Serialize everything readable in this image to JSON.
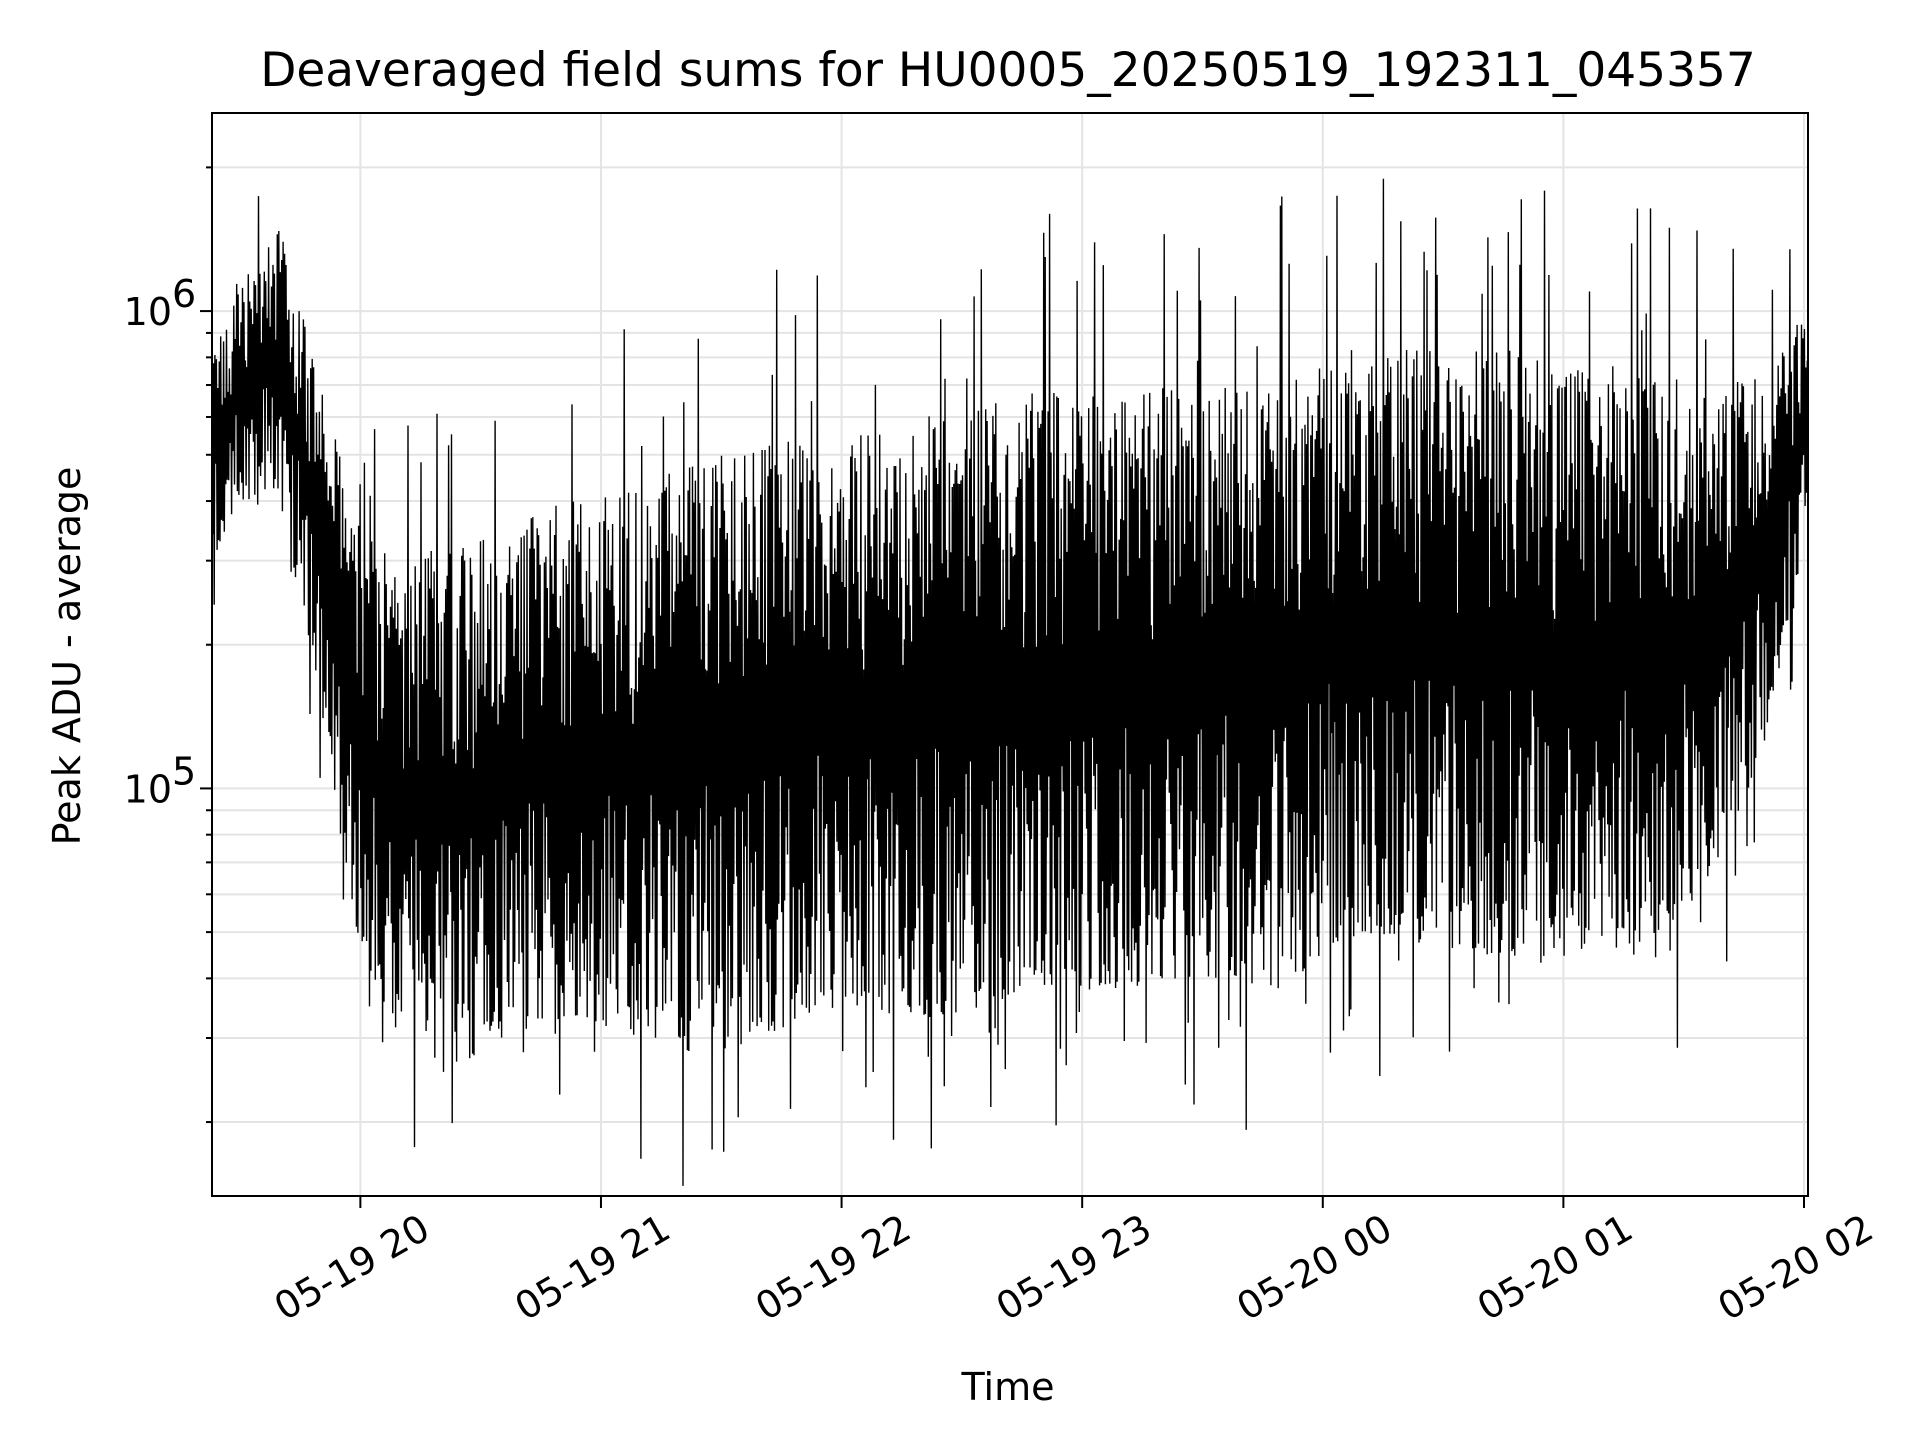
{
  "chart_data": {
    "type": "line",
    "title": "Deaveraged field sums for HU0005_20250519_192311_045357",
    "xlabel": "Time",
    "ylabel": "Peak ADU - average",
    "yscale": "log",
    "ylim": [
      14000,
      2600000
    ],
    "xlim": [
      "2025-05-19 19:23",
      "2025-05-20 02:01"
    ],
    "xticks": [
      {
        "value": "2025-05-19 20:00",
        "label": "05-19 20"
      },
      {
        "value": "2025-05-19 21:00",
        "label": "05-19 21"
      },
      {
        "value": "2025-05-19 22:00",
        "label": "05-19 22"
      },
      {
        "value": "2025-05-19 23:00",
        "label": "05-19 23"
      },
      {
        "value": "2025-05-20 00:00",
        "label": "05-20 00"
      },
      {
        "value": "2025-05-20 01:00",
        "label": "05-20 01"
      },
      {
        "value": "2025-05-20 02:00",
        "label": "05-20 02"
      }
    ],
    "yticks": [
      {
        "value": 100000,
        "label": "10",
        "exponent": "5"
      },
      {
        "value": 1000000,
        "label": "10",
        "exponent": "6"
      }
    ],
    "grid": true,
    "line_color": "#000000",
    "series": [
      {
        "x": [
          "2025-05-19 19:23",
          "2025-05-19 19:30",
          "2025-05-19 19:40",
          "2025-05-19 19:50",
          "2025-05-19 20:00",
          "2025-05-19 20:10",
          "2025-05-19 20:20",
          "2025-05-19 20:30",
          "2025-05-19 20:40",
          "2025-05-19 20:50",
          "2025-05-19 21:00",
          "2025-05-19 21:10",
          "2025-05-19 21:20",
          "2025-05-19 21:30",
          "2025-05-19 21:40",
          "2025-05-19 21:50",
          "2025-05-19 22:00",
          "2025-05-19 22:10",
          "2025-05-19 22:20",
          "2025-05-19 22:30",
          "2025-05-19 22:40",
          "2025-05-19 22:50",
          "2025-05-19 23:00",
          "2025-05-19 23:10",
          "2025-05-19 23:20",
          "2025-05-19 23:30",
          "2025-05-19 23:40",
          "2025-05-19 23:50",
          "2025-05-20 00:00",
          "2025-05-20 00:10",
          "2025-05-20 00:20",
          "2025-05-20 00:30",
          "2025-05-20 00:40",
          "2025-05-20 00:50",
          "2025-05-20 01:00",
          "2025-05-20 01:10",
          "2025-05-20 01:20",
          "2025-05-20 01:30",
          "2025-05-20 01:40",
          "2025-05-20 01:50",
          "2025-05-20 02:00"
        ],
        "upper": [
          800000,
          1200000,
          1500000,
          700000,
          350000,
          300000,
          320000,
          330000,
          370000,
          400000,
          420000,
          450000,
          480000,
          500000,
          520000,
          540000,
          560000,
          580000,
          600000,
          620000,
          650000,
          680000,
          700000,
          700000,
          690000,
          680000,
          700000,
          720000,
          800000,
          850000,
          870000,
          860000,
          850000,
          830000,
          800000,
          780000,
          760000,
          740000,
          700000,
          750000,
          1000000
        ],
        "lower": [
          300000,
          400000,
          400000,
          150000,
          45000,
          30000,
          25000,
          28000,
          30000,
          33000,
          32000,
          30000,
          28000,
          28000,
          30000,
          33000,
          35000,
          34000,
          33000,
          34000,
          36000,
          38000,
          38000,
          38000,
          39000,
          40000,
          39000,
          38000,
          45000,
          50000,
          48000,
          46000,
          45000,
          44000,
          42000,
          44000,
          48000,
          55000,
          70000,
          120000,
          300000
        ]
      }
    ]
  }
}
